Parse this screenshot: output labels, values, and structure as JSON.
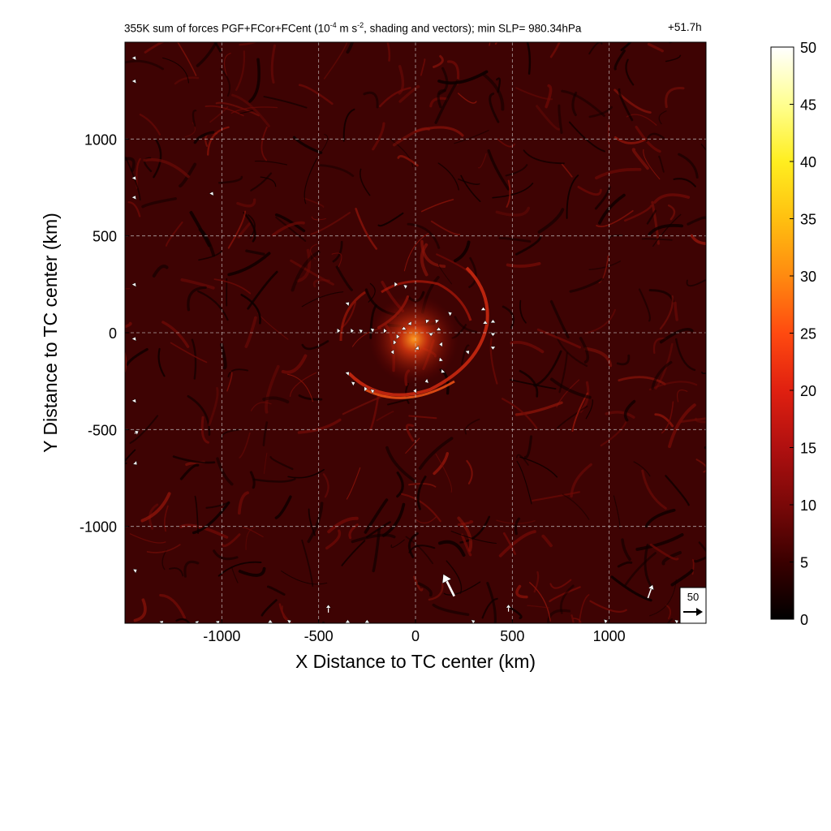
{
  "title": {
    "prefix": "355K sum of forces PGF+FCor+FCent (10",
    "exp1": "-4",
    "mid": " m s",
    "exp2": "-2",
    "suffix": ", shading and vectors); min SLP= 980.34hPa",
    "time": "+51.7h"
  },
  "chart_data": {
    "type": "heatmap",
    "xlabel": "X Distance to TC center (km)",
    "ylabel": "Y Distance to TC center (km)",
    "xlim": [
      -1500,
      1500
    ],
    "ylim": [
      -1500,
      1500
    ],
    "x_ticks": [
      -1000,
      -500,
      0,
      500,
      1000
    ],
    "y_ticks": [
      -1000,
      -500,
      0,
      500,
      1000
    ],
    "x_tick_labels": [
      "-1000",
      "-500",
      "0",
      "500",
      "1000"
    ],
    "y_tick_labels": [
      "-1000",
      "-500",
      "0",
      "500",
      "1000"
    ],
    "grid": true,
    "colorbar": {
      "min": 0,
      "max": 50,
      "ticks": [
        0,
        5,
        10,
        15,
        20,
        25,
        30,
        35,
        40,
        45,
        50
      ],
      "tick_labels": [
        "0",
        "5",
        "10",
        "15",
        "20",
        "25",
        "30",
        "35",
        "40",
        "45",
        "50"
      ],
      "colormap": [
        "#000000",
        "#3a0000",
        "#7a0808",
        "#b01010",
        "#e02010",
        "#ff4a10",
        "#ff8a10",
        "#ffc010",
        "#ffee20",
        "#ffff90",
        "#ffffff"
      ]
    },
    "reference_vector": {
      "label": "50",
      "magnitude": 50
    },
    "vectors": [
      {
        "x": 200,
        "y": -1360,
        "u": -14,
        "v": 28
      },
      {
        "x": 1200,
        "y": -1370,
        "u": 6,
        "v": 17
      },
      {
        "x": -450,
        "y": -1445,
        "u": 0,
        "v": 10
      },
      {
        "x": 480,
        "y": -1440,
        "u": 0,
        "v": 9
      },
      {
        "x": -1450,
        "y": -520,
        "u": 5,
        "v": 3
      },
      {
        "x": -1450,
        "y": -670,
        "u": 3,
        "v": -3
      },
      {
        "x": -1450,
        "y": -1230,
        "u": 3,
        "v": 2
      },
      {
        "x": -1310,
        "y": -1495,
        "u": 2,
        "v": 2
      },
      {
        "x": -1130,
        "y": -1495,
        "u": -2,
        "v": 1
      },
      {
        "x": -1020,
        "y": -1495,
        "u": 2,
        "v": 2
      },
      {
        "x": -750,
        "y": -1490,
        "u": 0,
        "v": 2
      },
      {
        "x": -650,
        "y": -1490,
        "u": 2,
        "v": 1
      },
      {
        "x": -350,
        "y": -1490,
        "u": 0,
        "v": 2
      },
      {
        "x": -250,
        "y": -1490,
        "u": 0,
        "v": 2
      },
      {
        "x": 300,
        "y": -1490,
        "u": 2,
        "v": 1
      },
      {
        "x": 980,
        "y": -1490,
        "u": 3,
        "v": 1
      },
      {
        "x": 1350,
        "y": -1490,
        "u": 2,
        "v": 1
      },
      {
        "x": -30,
        "y": 50,
        "u": 2,
        "v": -3
      },
      {
        "x": -60,
        "y": 20,
        "u": 0,
        "v": 3
      },
      {
        "x": -90,
        "y": -20,
        "u": 2,
        "v": 0
      },
      {
        "x": -120,
        "y": -100,
        "u": -2,
        "v": 0
      },
      {
        "x": -110,
        "y": -50,
        "u": 3,
        "v": 0
      },
      {
        "x": -160,
        "y": 10,
        "u": 3,
        "v": 0
      },
      {
        "x": -220,
        "y": 15,
        "u": 2,
        "v": 1
      },
      {
        "x": -280,
        "y": 10,
        "u": 2,
        "v": 1
      },
      {
        "x": -330,
        "y": 10,
        "u": 3,
        "v": 0
      },
      {
        "x": -400,
        "y": 10,
        "u": 3,
        "v": 0
      },
      {
        "x": -350,
        "y": 150,
        "u": 2,
        "v": 2
      },
      {
        "x": -100,
        "y": 250,
        "u": 2,
        "v": 0
      },
      {
        "x": -50,
        "y": 240,
        "u": 2,
        "v": 1
      },
      {
        "x": 60,
        "y": 60,
        "u": -2,
        "v": 2
      },
      {
        "x": 110,
        "y": 60,
        "u": -2,
        "v": 2
      },
      {
        "x": 120,
        "y": 20,
        "u": 0,
        "v": 2
      },
      {
        "x": 80,
        "y": -10,
        "u": 0,
        "v": -2
      },
      {
        "x": 130,
        "y": -60,
        "u": -2,
        "v": 0
      },
      {
        "x": 130,
        "y": -140,
        "u": -2,
        "v": -2
      },
      {
        "x": 140,
        "y": -200,
        "u": -2,
        "v": -2
      },
      {
        "x": 60,
        "y": -250,
        "u": -3,
        "v": -1
      },
      {
        "x": 0,
        "y": -300,
        "u": -3,
        "v": 0
      },
      {
        "x": -220,
        "y": -300,
        "u": 2,
        "v": 1
      },
      {
        "x": -260,
        "y": -290,
        "u": 3,
        "v": 0
      },
      {
        "x": -320,
        "y": -260,
        "u": 2,
        "v": 1
      },
      {
        "x": -350,
        "y": -210,
        "u": 2,
        "v": 2
      },
      {
        "x": 180,
        "y": 100,
        "u": 2,
        "v": 1
      },
      {
        "x": 270,
        "y": -100,
        "u": 2,
        "v": 2
      },
      {
        "x": 350,
        "y": 120,
        "u": 0,
        "v": 3
      },
      {
        "x": 360,
        "y": 50,
        "u": 0,
        "v": 3
      },
      {
        "x": 400,
        "y": 60,
        "u": 0,
        "v": 2
      },
      {
        "x": 400,
        "y": -10,
        "u": 0,
        "v": -2
      },
      {
        "x": 400,
        "y": -80,
        "u": 0,
        "v": -2
      },
      {
        "x": 10,
        "y": -80,
        "u": 2,
        "v": -2
      },
      {
        "x": -1450,
        "y": 1420,
        "u": 1,
        "v": 2
      },
      {
        "x": -1450,
        "y": 1300,
        "u": 1,
        "v": 2
      },
      {
        "x": -1450,
        "y": 800,
        "u": 1,
        "v": 2
      },
      {
        "x": -1450,
        "y": 700,
        "u": 1,
        "v": 2
      },
      {
        "x": -1450,
        "y": 250,
        "u": 1,
        "v": 2
      },
      {
        "x": -1450,
        "y": -30,
        "u": 1,
        "v": 2
      },
      {
        "x": -1450,
        "y": -350,
        "u": 1,
        "v": 2
      },
      {
        "x": -1050,
        "y": 720,
        "u": 1,
        "v": 2
      }
    ]
  }
}
